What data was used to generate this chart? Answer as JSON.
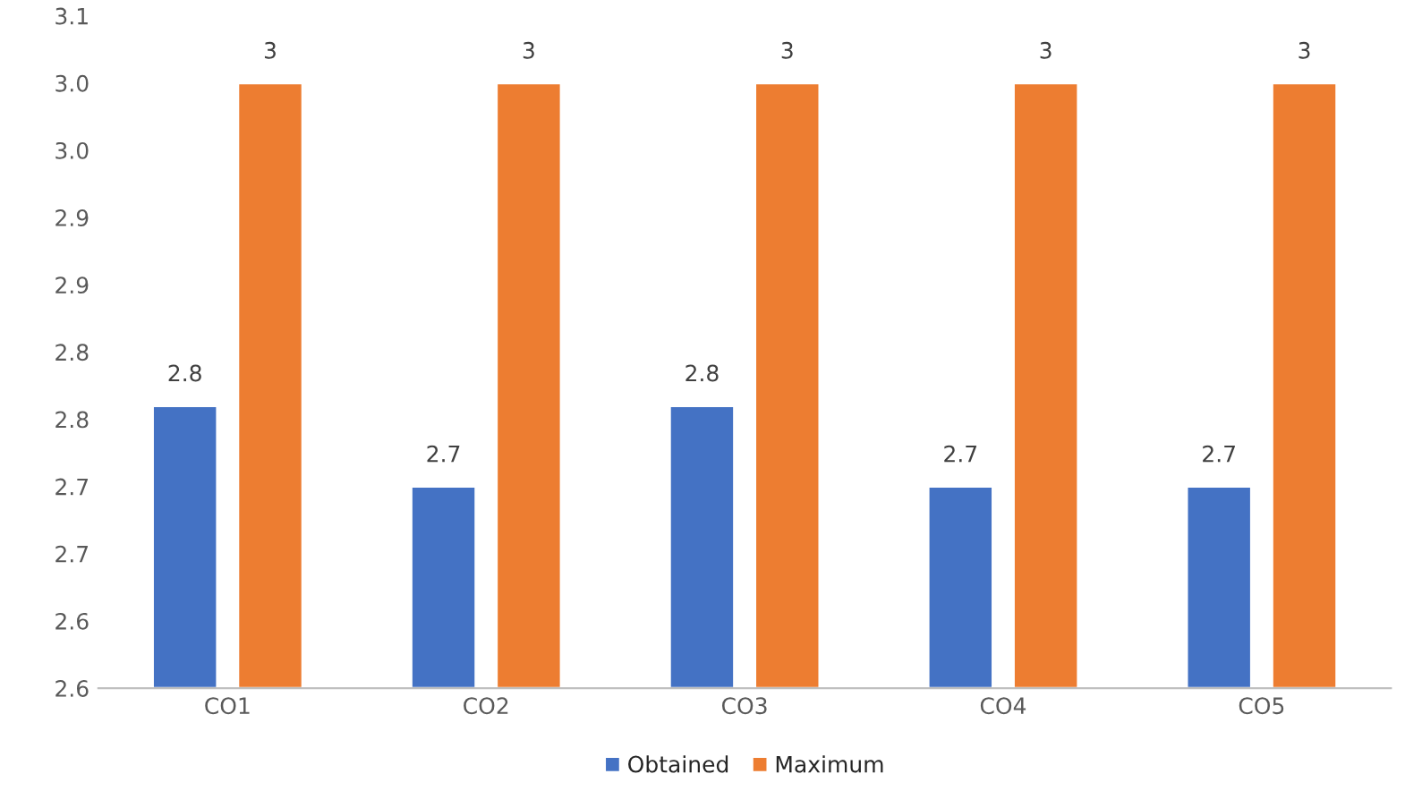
{
  "chart_data": {
    "type": "bar",
    "categories": [
      "CO1",
      "CO2",
      "CO3",
      "CO4",
      "CO5"
    ],
    "series": [
      {
        "name": "Obtained",
        "color": "#4472c4",
        "values": [
          2.76,
          2.7,
          2.76,
          2.7,
          2.7
        ],
        "value_labels": [
          "2.8",
          "2.7",
          "2.8",
          "2.7",
          "2.7"
        ]
      },
      {
        "name": "Maximum",
        "color": "#ed7d31",
        "values": [
          3,
          3,
          3,
          3,
          3
        ],
        "value_labels": [
          "3",
          "3",
          "3",
          "3",
          "3"
        ]
      }
    ],
    "ylim": [
      2.55,
      3.05
    ],
    "yticks": [
      {
        "value": 2.55,
        "label": "2.6"
      },
      {
        "value": 2.6,
        "label": "2.6"
      },
      {
        "value": 2.65,
        "label": "2.7"
      },
      {
        "value": 2.7,
        "label": "2.7"
      },
      {
        "value": 2.75,
        "label": "2.8"
      },
      {
        "value": 2.8,
        "label": "2.8"
      },
      {
        "value": 2.85,
        "label": "2.9"
      },
      {
        "value": 2.9,
        "label": "2.9"
      },
      {
        "value": 2.95,
        "label": "3.0"
      },
      {
        "value": 3.0,
        "label": "3.0"
      },
      {
        "value": 3.05,
        "label": "3.1"
      }
    ],
    "legend": "bottom",
    "grid": false
  }
}
